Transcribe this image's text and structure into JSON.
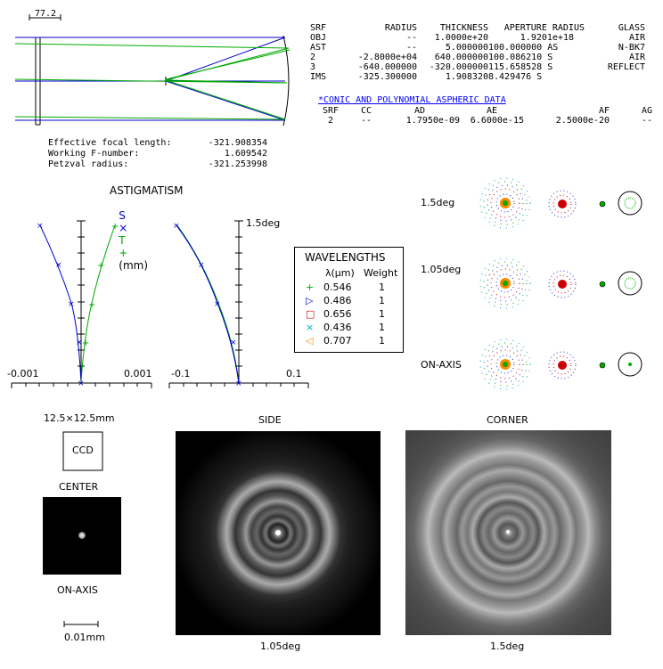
{
  "layout_scale": "77.2",
  "surface_table": {
    "headers": [
      "SRF",
      "RADIUS",
      "THICKNESS",
      "APERTURE RADIUS",
      "GLASS"
    ],
    "rows": [
      [
        "OBJ",
        "--",
        "1.0000e+20",
        "1.9201e+18",
        "AIR"
      ],
      [
        "AST",
        "--",
        "5.000000",
        "100.000000 AS",
        "N-BK7"
      ],
      [
        "2",
        "-2.8000e+04",
        "640.000000",
        "100.086210 S",
        "AIR"
      ],
      [
        "3",
        "-640.000000",
        "-320.000000",
        "115.658528 S",
        "REFLECT"
      ],
      [
        "IMS",
        "-325.300000",
        "1.908320",
        "8.429476 S",
        ""
      ]
    ]
  },
  "aspheric": {
    "title": "*CONIC AND POLYNOMIAL ASPHERIC DATA",
    "headers": [
      "SRF",
      "CC",
      "AD",
      "AE",
      "AF",
      "AG"
    ],
    "rows": [
      [
        "2",
        "--",
        "1.7950e-09",
        "6.6000e-15",
        "2.5000e-20",
        "--"
      ]
    ]
  },
  "specs": {
    "efl_label": "Effective focal length:",
    "efl_value": "-321.908354",
    "fnum_label": "Working F-number:",
    "fnum_value": "1.609542",
    "petzval_label": "Petzval radius:",
    "petzval_value": "-321.253998"
  },
  "astig": {
    "title": "ASTIGMATISM",
    "legend_s": "S",
    "legend_x": "×",
    "legend_t": "T",
    "legend_plus": "+",
    "legend_units": "(mm)",
    "field_label": "1.5deg",
    "left_min": "-0.001",
    "left_max": "0.001",
    "right_min": "-0.1",
    "right_max": "0.1",
    "colors": {
      "sagittal": "#0000cc",
      "tangential": "#00aa00"
    }
  },
  "wavelengths": {
    "title": "WAVELENGTHS",
    "col_lambda": "λ(μm)",
    "col_weight": "Weight",
    "items": [
      {
        "marker": "+",
        "value": "0.546",
        "weight": "1",
        "color": "#00aa00"
      },
      {
        "marker": "▷",
        "value": "0.486",
        "weight": "1",
        "color": "#0000cc"
      },
      {
        "marker": "□",
        "value": "0.656",
        "weight": "1",
        "color": "#cc0000"
      },
      {
        "marker": "×",
        "value": "0.436",
        "weight": "1",
        "color": "#00aacc"
      },
      {
        "marker": "◁",
        "value": "0.707",
        "weight": "1",
        "color": "#ff8800"
      }
    ]
  },
  "spots": {
    "rows": [
      {
        "label": "1.5deg"
      },
      {
        "label": "1.05deg"
      },
      {
        "label": "ON-AXIS"
      }
    ]
  },
  "psf": {
    "ccd_size": "12.5×12.5mm",
    "ccd_label": "CCD",
    "center_label": "CENTER",
    "onaxis_label": "ON-AXIS",
    "scale_label": "0.01mm",
    "side_title": "SIDE",
    "side_caption": "1.05deg",
    "corner_title": "CORNER",
    "corner_caption": "1.5deg"
  }
}
